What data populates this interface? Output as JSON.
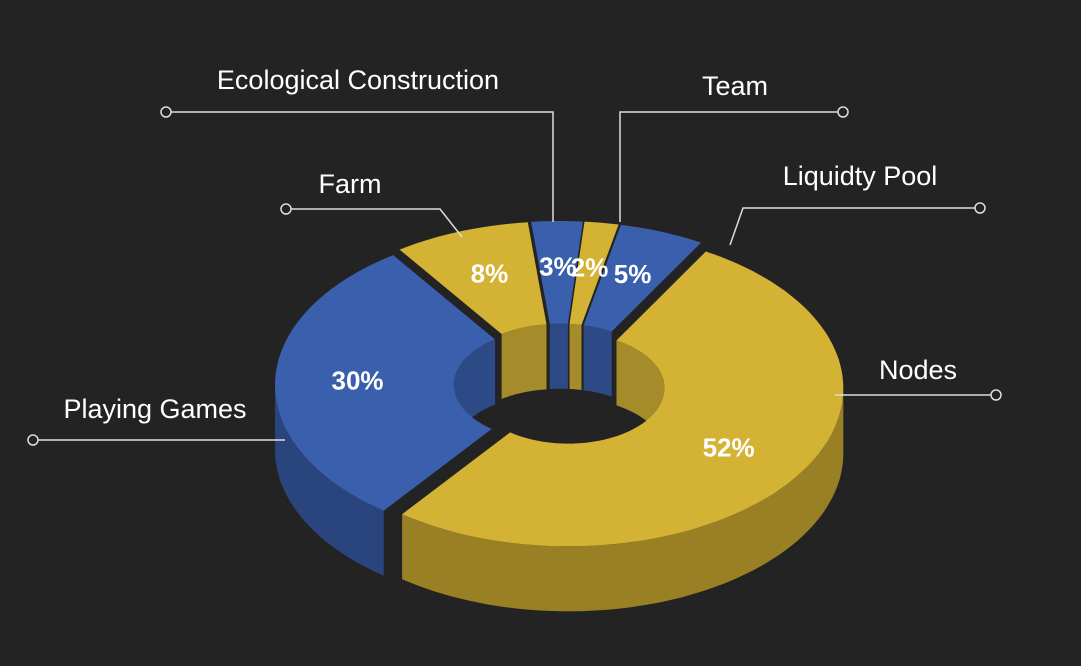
{
  "chart_data": {
    "type": "donut",
    "categories": [
      "Ecological Construction",
      "Team",
      "Liquidty Pool",
      "Nodes",
      "Playing Games",
      "Farm"
    ],
    "values": [
      3,
      2,
      5,
      52,
      30,
      8
    ],
    "value_labels": [
      "3%",
      "2%",
      "5%",
      "52%",
      "30%",
      "8%"
    ],
    "colors": [
      "#3a5fad",
      "#d4b234",
      "#3a5fad",
      "#d4b234",
      "#3a5fad",
      "#d4b234"
    ]
  }
}
